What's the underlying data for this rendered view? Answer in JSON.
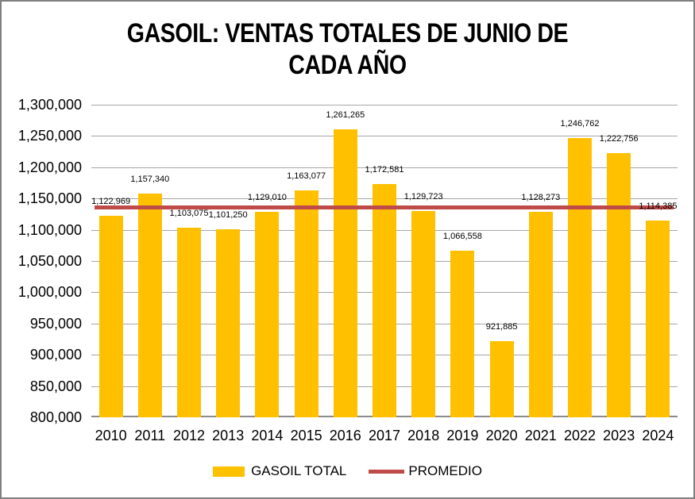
{
  "chart_data": {
    "type": "bar",
    "title": "GASOIL: VENTAS TOTALES DE JUNIO DE\nCADA AÑO",
    "categories": [
      "2010",
      "2011",
      "2012",
      "2013",
      "2014",
      "2015",
      "2016",
      "2017",
      "2018",
      "2019",
      "2020",
      "2021",
      "2022",
      "2023",
      "2024"
    ],
    "series": [
      {
        "name": "GASOIL TOTAL",
        "type": "bar",
        "color": "#FFC000",
        "values": [
          1122969,
          1157340,
          1103075,
          1101250,
          1129010,
          1163077,
          1261265,
          1172581,
          1129723,
          1066558,
          921885,
          1128273,
          1246762,
          1222756,
          1114385
        ]
      },
      {
        "name": "PROMEDIO",
        "type": "line",
        "color": "#BE4B48",
        "value": 1136061
      }
    ],
    "data_labels": [
      "1,122,969",
      "1,157,340",
      "1,103,075",
      "1,101,250",
      "1,129,010",
      "1,163,077",
      "1,261,265",
      "1,172,581",
      "1,129,723",
      "1,066,558",
      "921,885",
      "1,128,273",
      "1,246,762",
      "1,222,756",
      "1,114,385"
    ],
    "y_axis": {
      "min": 800000,
      "max": 1300000,
      "step": 50000,
      "tick_labels": [
        "800,000",
        "850,000",
        "900,000",
        "950,000",
        "1,000,000",
        "1,050,000",
        "1,100,000",
        "1,150,000",
        "1,200,000",
        "1,250,000",
        "1,300,000"
      ]
    },
    "xlabel": "",
    "ylabel": "",
    "grid": true,
    "legend_position": "bottom",
    "legend": [
      "GASOIL TOTAL",
      "PROMEDIO"
    ],
    "colors": {
      "bar_fill": "#FFC000",
      "promedio_line": "#BE4B48",
      "gridline": "#A6A6A6",
      "axis_line": "#8C8C8C",
      "frame_border": "#808080",
      "background": "#FFFFFF",
      "text": "#000000"
    }
  }
}
